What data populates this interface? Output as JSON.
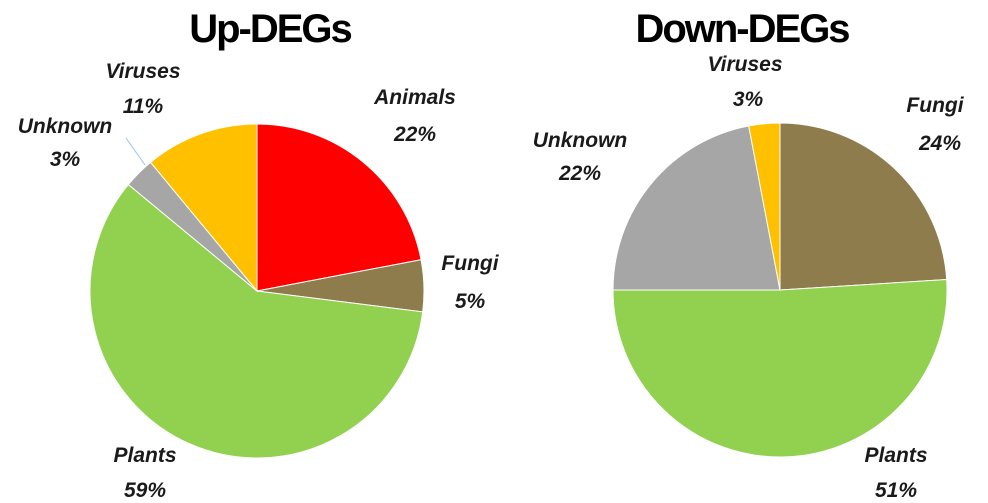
{
  "chart_data": [
    {
      "type": "pie",
      "title": "Up-DEGs",
      "slices": [
        {
          "label": "Animals",
          "value": 22,
          "text": "22%",
          "color": "#ff0000"
        },
        {
          "label": "Fungi",
          "value": 5,
          "text": "5%",
          "color": "#8e7c4c"
        },
        {
          "label": "Plants",
          "value": 59,
          "text": "59%",
          "color": "#92d050"
        },
        {
          "label": "Unknown",
          "value": 3,
          "text": "3%",
          "color": "#a6a6a6"
        },
        {
          "label": "Viruses",
          "value": 11,
          "text": "11%",
          "color": "#ffc000"
        }
      ]
    },
    {
      "type": "pie",
      "title": "Down-DEGs",
      "slices": [
        {
          "label": "Fungi",
          "value": 24,
          "text": "24%",
          "color": "#8e7c4c"
        },
        {
          "label": "Plants",
          "value": 51,
          "text": "51%",
          "color": "#92d050"
        },
        {
          "label": "Unknown",
          "value": 22,
          "text": "22%",
          "color": "#a6a6a6"
        },
        {
          "label": "Viruses",
          "value": 3,
          "text": "3%",
          "color": "#ffc000"
        }
      ]
    }
  ]
}
